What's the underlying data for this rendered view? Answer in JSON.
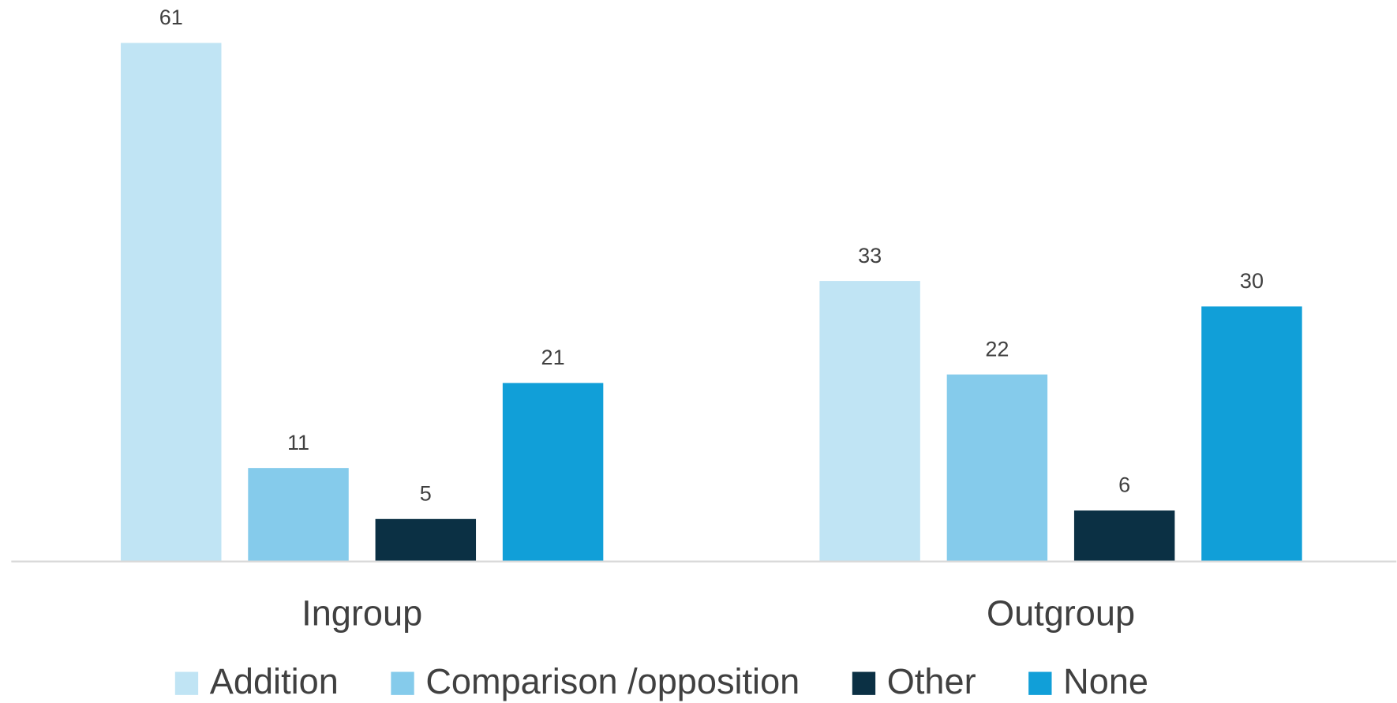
{
  "chart_data": {
    "type": "bar",
    "categories": [
      "Ingroup",
      "Outgroup"
    ],
    "series": [
      {
        "name": "Addition",
        "color": "#c0e4f4",
        "values": [
          61,
          33
        ]
      },
      {
        "name": "Comparison /opposition",
        "color": "#85cbeb",
        "values": [
          11,
          22
        ]
      },
      {
        "name": "Other",
        "color": "#0b3044",
        "values": [
          5,
          6
        ]
      },
      {
        "name": "None",
        "color": "#119fd8",
        "values": [
          21,
          30
        ]
      }
    ],
    "ylim": [
      0,
      65
    ],
    "legend": "bottom"
  }
}
